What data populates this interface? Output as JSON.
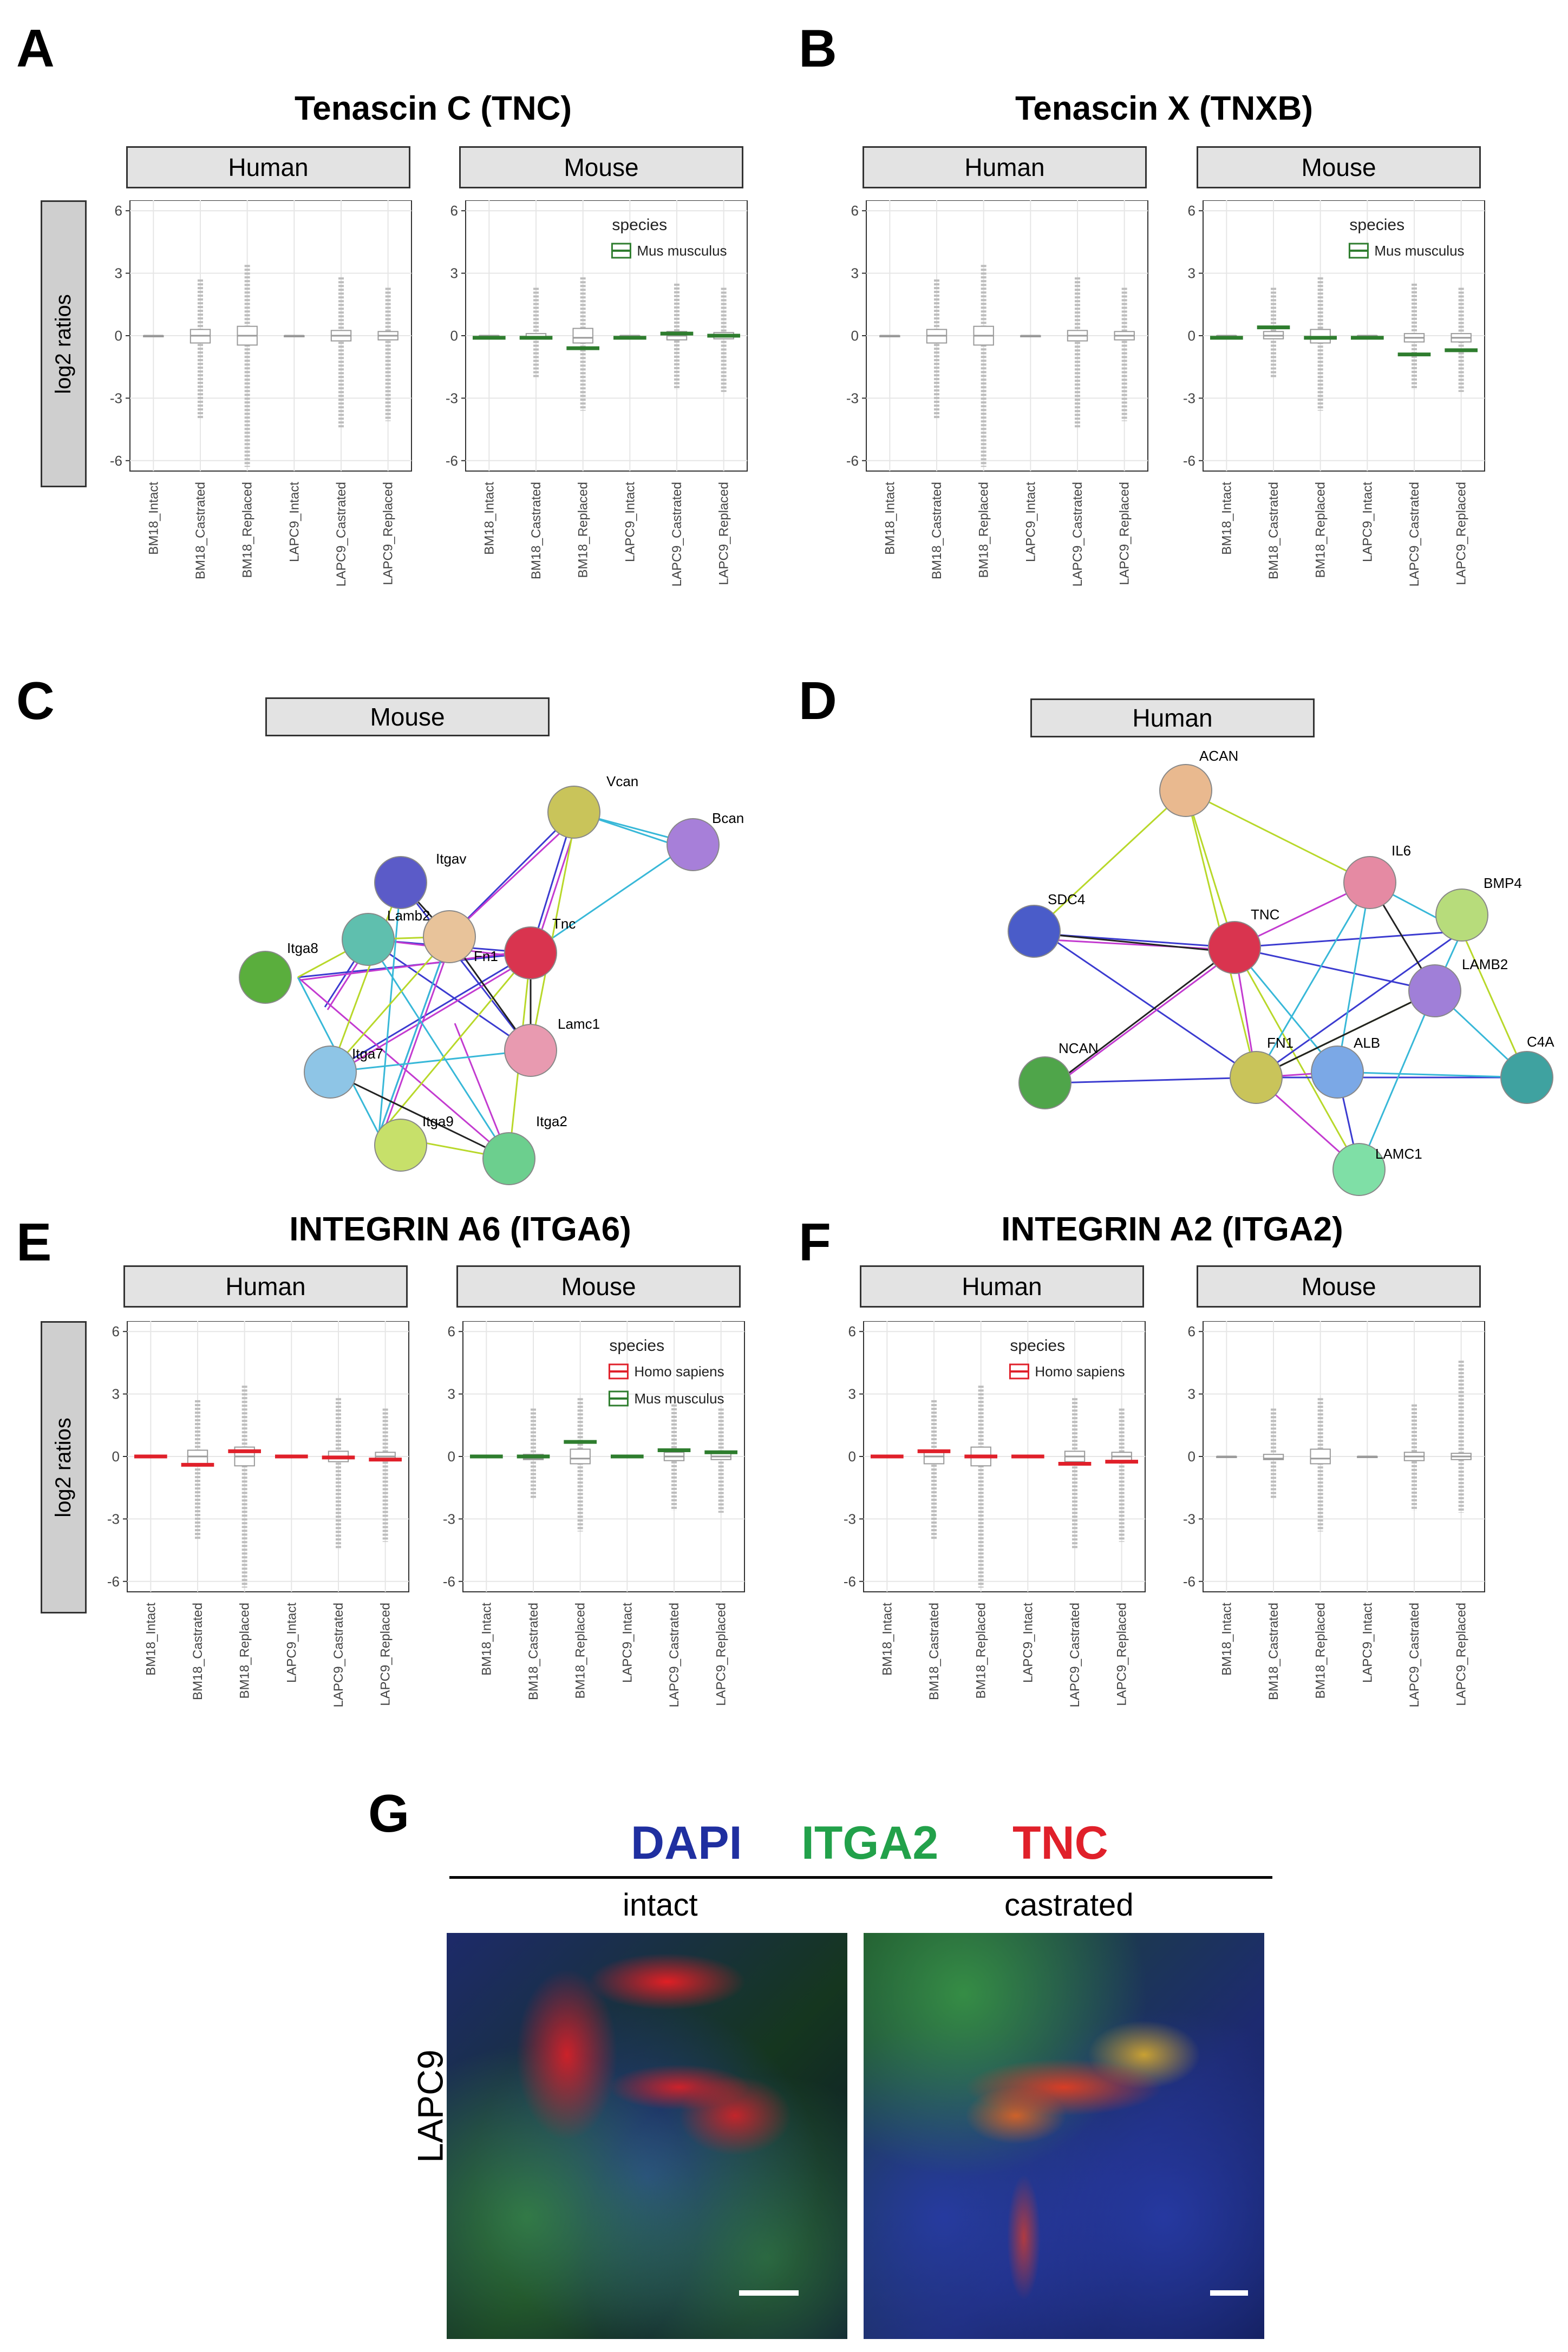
{
  "panels": {
    "A": {
      "letter": "A",
      "title": "Tenascin C (TNC)"
    },
    "B": {
      "letter": "B",
      "title": "Tenascin X (TNXB)"
    },
    "C": {
      "letter": "C",
      "strip": "Mouse"
    },
    "D": {
      "letter": "D",
      "strip": "Human"
    },
    "E": {
      "letter": "E",
      "title": "INTEGRIN A6 (ITGA6)"
    },
    "F": {
      "letter": "F",
      "title": "INTEGRIN A2 (ITGA2)"
    },
    "G": {
      "letter": "G"
    }
  },
  "facets": {
    "human": "Human",
    "mouse": "Mouse"
  },
  "ylabel": "log2 ratios",
  "legend_title": "species",
  "species": {
    "mus": "Mus musculus",
    "homo": "Homo sapiens"
  },
  "colors": {
    "mus": "#2e7d2e",
    "homo": "#e0202a",
    "box": "#9a9a9a",
    "grid": "#e6e6e6"
  },
  "chart_data": [
    {
      "type": "box",
      "panel": "A",
      "facet": "Human",
      "title": "Tenascin C (TNC)",
      "ylabel": "log2 ratios",
      "ylim": [
        -6.5,
        6.5
      ],
      "yticks": [
        -6,
        -3,
        0,
        3,
        6
      ],
      "categories": [
        "BM18_Intact",
        "BM18_Castrated",
        "BM18_Replaced",
        "LAPC9_Intact",
        "LAPC9_Castrated",
        "LAPC9_Replaced"
      ],
      "box": [
        [
          0,
          0,
          0,
          0,
          0
        ],
        [
          -0.3,
          -0.35,
          0,
          0.3,
          0.35
        ],
        [
          -0.5,
          -0.45,
          0,
          0.45,
          0.5
        ],
        [
          0,
          0,
          0,
          0,
          0
        ],
        [
          -0.3,
          -0.25,
          0,
          0.25,
          0.3
        ],
        [
          -0.2,
          -0.2,
          0,
          0.2,
          0.2
        ]
      ],
      "whisker": [
        [
          0,
          0
        ],
        [
          -4,
          2.7
        ],
        [
          -6.3,
          3.4
        ],
        [
          0,
          0
        ],
        [
          -4.4,
          2.8
        ],
        [
          -4.1,
          2.3
        ]
      ],
      "highlight": []
    },
    {
      "type": "box",
      "panel": "A",
      "facet": "Mouse",
      "ylim": [
        -6.5,
        6.5
      ],
      "yticks": [
        -6,
        -3,
        0,
        3,
        6
      ],
      "categories": [
        "BM18_Intact",
        "BM18_Castrated",
        "BM18_Replaced",
        "LAPC9_Intact",
        "LAPC9_Castrated",
        "LAPC9_Replaced"
      ],
      "box": [
        [
          0,
          0,
          0,
          0,
          0
        ],
        [
          -0.15,
          -0.15,
          -0.1,
          0.1,
          0.1
        ],
        [
          -0.4,
          -0.35,
          -0.1,
          0.35,
          0.4
        ],
        [
          0,
          0,
          0,
          0,
          0
        ],
        [
          -0.2,
          -0.2,
          0,
          0.2,
          0.2
        ],
        [
          -0.15,
          -0.15,
          0,
          0.15,
          0.15
        ]
      ],
      "whisker": [
        [
          0,
          0
        ],
        [
          -2,
          2.3
        ],
        [
          -3.6,
          2.8
        ],
        [
          0,
          0
        ],
        [
          -2.6,
          2.5
        ],
        [
          -2.7,
          2.3
        ]
      ],
      "highlight": [
        {
          "series": "mus",
          "values": [
            -0.1,
            -0.1,
            -0.6,
            -0.1,
            0.1,
            0.0
          ]
        }
      ],
      "legend": [
        "mus"
      ]
    },
    {
      "type": "box",
      "panel": "B",
      "facet": "Human",
      "title": "Tenascin X (TNXB)",
      "ylim": [
        -6.5,
        6.5
      ],
      "yticks": [
        -6,
        -3,
        0,
        3,
        6
      ],
      "categories": [
        "BM18_Intact",
        "BM18_Castrated",
        "BM18_Replaced",
        "LAPC9_Intact",
        "LAPC9_Castrated",
        "LAPC9_Replaced"
      ],
      "box": [
        [
          0,
          0,
          0,
          0,
          0
        ],
        [
          -0.3,
          -0.35,
          0,
          0.3,
          0.35
        ],
        [
          -0.5,
          -0.45,
          0,
          0.45,
          0.5
        ],
        [
          0,
          0,
          0,
          0,
          0
        ],
        [
          -0.3,
          -0.25,
          0,
          0.25,
          0.3
        ],
        [
          -0.2,
          -0.2,
          0,
          0.2,
          0.2
        ]
      ],
      "whisker": [
        [
          0,
          0
        ],
        [
          -4,
          2.7
        ],
        [
          -6.3,
          3.4
        ],
        [
          0,
          0
        ],
        [
          -4.4,
          2.8
        ],
        [
          -4.1,
          2.3
        ]
      ],
      "highlight": []
    },
    {
      "type": "box",
      "panel": "B",
      "facet": "Mouse",
      "ylim": [
        -6.5,
        6.5
      ],
      "yticks": [
        -6,
        -3,
        0,
        3,
        6
      ],
      "categories": [
        "BM18_Intact",
        "BM18_Castrated",
        "BM18_Replaced",
        "LAPC9_Intact",
        "LAPC9_Castrated",
        "LAPC9_Replaced"
      ],
      "box": [
        [
          0,
          0,
          0,
          0,
          0
        ],
        [
          -0.15,
          -0.15,
          0,
          0.2,
          0.3
        ],
        [
          -0.4,
          -0.35,
          -0.1,
          0.3,
          0.4
        ],
        [
          0,
          0,
          0,
          0,
          0
        ],
        [
          -0.3,
          -0.3,
          -0.1,
          0.1,
          0.15
        ],
        [
          -0.3,
          -0.3,
          -0.1,
          0.1,
          0.15
        ]
      ],
      "whisker": [
        [
          0,
          0
        ],
        [
          -2,
          2.3
        ],
        [
          -3.6,
          2.8
        ],
        [
          0,
          0
        ],
        [
          -2.6,
          2.5
        ],
        [
          -2.7,
          2.3
        ]
      ],
      "highlight": [
        {
          "series": "mus",
          "values": [
            -0.1,
            0.4,
            -0.1,
            -0.1,
            -0.9,
            -0.7
          ]
        }
      ],
      "legend": [
        "mus"
      ]
    },
    {
      "type": "box",
      "panel": "E",
      "facet": "Human",
      "title": "INTEGRIN A6 (ITGA6)",
      "ylim": [
        -6.5,
        6.5
      ],
      "yticks": [
        -6,
        -3,
        0,
        3,
        6
      ],
      "categories": [
        "BM18_Intact",
        "BM18_Castrated",
        "BM18_Replaced",
        "LAPC9_Intact",
        "LAPC9_Castrated",
        "LAPC9_Replaced"
      ],
      "box": [
        [
          0,
          0,
          0,
          0,
          0
        ],
        [
          -0.3,
          -0.35,
          0,
          0.3,
          0.35
        ],
        [
          -0.5,
          -0.45,
          0,
          0.45,
          0.5
        ],
        [
          0,
          0,
          0,
          0,
          0
        ],
        [
          -0.3,
          -0.25,
          0,
          0.25,
          0.3
        ],
        [
          -0.2,
          -0.2,
          0,
          0.2,
          0.2
        ]
      ],
      "whisker": [
        [
          0,
          0
        ],
        [
          -4,
          2.7
        ],
        [
          -6.3,
          3.4
        ],
        [
          0,
          0
        ],
        [
          -4.4,
          2.8
        ],
        [
          -4.1,
          2.3
        ]
      ],
      "highlight": [
        {
          "series": "homo",
          "values": [
            0.0,
            -0.4,
            0.25,
            0.0,
            -0.05,
            -0.15
          ]
        }
      ],
      "legend": []
    },
    {
      "type": "box",
      "panel": "E",
      "facet": "Mouse",
      "ylim": [
        -6.5,
        6.5
      ],
      "yticks": [
        -6,
        -3,
        0,
        3,
        6
      ],
      "categories": [
        "BM18_Intact",
        "BM18_Castrated",
        "BM18_Replaced",
        "LAPC9_Intact",
        "LAPC9_Castrated",
        "LAPC9_Replaced"
      ],
      "box": [
        [
          0,
          0,
          0,
          0,
          0
        ],
        [
          -0.15,
          -0.15,
          -0.1,
          0.1,
          0.1
        ],
        [
          -0.4,
          -0.35,
          -0.1,
          0.35,
          0.4
        ],
        [
          0,
          0,
          0,
          0,
          0
        ],
        [
          -0.2,
          -0.2,
          0,
          0.2,
          0.2
        ],
        [
          -0.15,
          -0.15,
          0,
          0.15,
          0.15
        ]
      ],
      "whisker": [
        [
          0,
          0
        ],
        [
          -2,
          2.3
        ],
        [
          -3.6,
          2.8
        ],
        [
          0,
          0
        ],
        [
          -2.6,
          2.5
        ],
        [
          -2.7,
          2.3
        ]
      ],
      "highlight": [
        {
          "series": "mus",
          "values": [
            0.0,
            0.0,
            0.7,
            0.0,
            0.3,
            0.2
          ]
        }
      ],
      "legend": [
        "homo",
        "mus"
      ]
    },
    {
      "type": "box",
      "panel": "F",
      "facet": "Human",
      "title": "INTEGRIN A2 (ITGA2)",
      "ylim": [
        -6.5,
        6.5
      ],
      "yticks": [
        -6,
        -3,
        0,
        3,
        6
      ],
      "categories": [
        "BM18_Intact",
        "BM18_Castrated",
        "BM18_Replaced",
        "LAPC9_Intact",
        "LAPC9_Castrated",
        "LAPC9_Replaced"
      ],
      "box": [
        [
          0,
          0,
          0,
          0,
          0
        ],
        [
          -0.3,
          -0.35,
          0,
          0.3,
          0.35
        ],
        [
          -0.5,
          -0.45,
          0,
          0.45,
          0.5
        ],
        [
          0,
          0,
          0,
          0,
          0
        ],
        [
          -0.3,
          -0.25,
          0,
          0.25,
          0.3
        ],
        [
          -0.2,
          -0.2,
          0,
          0.2,
          0.2
        ]
      ],
      "whisker": [
        [
          0,
          0
        ],
        [
          -4,
          2.7
        ],
        [
          -6.3,
          3.4
        ],
        [
          0,
          0
        ],
        [
          -4.4,
          2.8
        ],
        [
          -4.1,
          2.3
        ]
      ],
      "highlight": [
        {
          "series": "homo",
          "values": [
            0.0,
            0.25,
            0.0,
            0.0,
            -0.35,
            -0.25
          ]
        }
      ],
      "legend": [
        "homo"
      ]
    },
    {
      "type": "box",
      "panel": "F",
      "facet": "Mouse",
      "ylim": [
        -6.5,
        6.5
      ],
      "yticks": [
        -6,
        -3,
        0,
        3,
        6
      ],
      "categories": [
        "BM18_Intact",
        "BM18_Castrated",
        "BM18_Replaced",
        "LAPC9_Intact",
        "LAPC9_Castrated",
        "LAPC9_Replaced"
      ],
      "box": [
        [
          0,
          0,
          0,
          0,
          0
        ],
        [
          -0.15,
          -0.15,
          -0.1,
          0.1,
          0.1
        ],
        [
          -0.4,
          -0.35,
          -0.1,
          0.35,
          0.4
        ],
        [
          0,
          0,
          0,
          0,
          0
        ],
        [
          -0.2,
          -0.2,
          0,
          0.2,
          0.2
        ],
        [
          -0.15,
          -0.15,
          0,
          0.15,
          0.15
        ]
      ],
      "whisker": [
        [
          0,
          0
        ],
        [
          -2,
          2.3
        ],
        [
          -3.6,
          2.8
        ],
        [
          0,
          0
        ],
        [
          -2.6,
          2.5
        ],
        [
          -2.7,
          4.6
        ]
      ],
      "highlight": [],
      "legend": []
    }
  ],
  "networks": {
    "mouse": {
      "nodes": [
        {
          "id": "Vcan",
          "label": "Vcan",
          "color": "#c9c45a"
        },
        {
          "id": "Bcan",
          "label": "Bcan",
          "color": "#a77fd9"
        },
        {
          "id": "Itgav",
          "label": "Itgav",
          "color": "#5b5bc8"
        },
        {
          "id": "Lamb2",
          "label": "Lamb2",
          "color": "#5fbfae"
        },
        {
          "id": "Tnc",
          "label": "Tnc",
          "color": "#d9344f"
        },
        {
          "id": "Fn1",
          "label": "Fn1",
          "color": "#e8c39a"
        },
        {
          "id": "Itga8",
          "label": "Itga8",
          "color": "#5aae3d"
        },
        {
          "id": "Lamc1",
          "label": "Lamc1",
          "color": "#e89ab0"
        },
        {
          "id": "Itga7",
          "label": "Itga7",
          "color": "#8ec5e6"
        },
        {
          "id": "Itga9",
          "label": "Itga9",
          "color": "#c7e06a"
        },
        {
          "id": "Itga2",
          "label": "Itga2",
          "color": "#6ccf8e"
        }
      ]
    },
    "human": {
      "nodes": [
        {
          "id": "ACAN",
          "label": "ACAN",
          "color": "#e9b98f"
        },
        {
          "id": "IL6",
          "label": "IL6",
          "color": "#e58aa3"
        },
        {
          "id": "BMP4",
          "label": "BMP4",
          "color": "#b7dc7b"
        },
        {
          "id": "SDC4",
          "label": "SDC4",
          "color": "#4a5cc9"
        },
        {
          "id": "TNC",
          "label": "TNC",
          "color": "#d9344f"
        },
        {
          "id": "LAMB2",
          "label": "LAMB2",
          "color": "#a07fd8"
        },
        {
          "id": "NCAN",
          "label": "NCAN",
          "color": "#4fa54a"
        },
        {
          "id": "FN1",
          "label": "FN1",
          "color": "#c9c45a"
        },
        {
          "id": "ALB",
          "label": "ALB",
          "color": "#7ba8e6"
        },
        {
          "id": "C4A",
          "label": "C4A",
          "color": "#3fa2a0"
        },
        {
          "id": "LAMC1",
          "label": "LAMC1",
          "color": "#7fdfa6"
        }
      ]
    }
  },
  "imaging": {
    "stains": [
      {
        "name": "DAPI",
        "color": "#1f2fa0"
      },
      {
        "name": "ITGA2",
        "color": "#22a14a"
      },
      {
        "name": "TNC",
        "color": "#e0202a"
      }
    ],
    "conditions": [
      "intact",
      "castrated"
    ],
    "row_label": "LAPC9"
  }
}
